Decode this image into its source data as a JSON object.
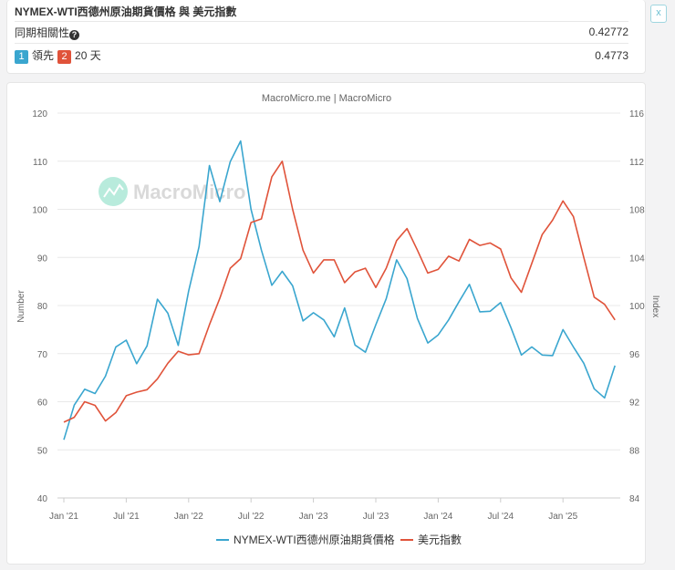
{
  "header": {
    "title": "NYMEX-WTI西德州原油期貨價格 與 美元指數",
    "close_label": "x"
  },
  "correlation": {
    "label": "同期相關性",
    "help_icon": "question-circle-icon",
    "value": "0.42772"
  },
  "lead": {
    "badge1": "1",
    "text1": "領先",
    "badge2": "2",
    "text2": "20 天",
    "value": "0.4773"
  },
  "colors": {
    "series1": "#3aa6cf",
    "series2": "#e0533a",
    "badge1": "#3aa6cf",
    "badge2": "#e0533a"
  },
  "chart_data": {
    "type": "line",
    "title": "MacroMicro.me | MacroMicro",
    "watermark": "MacroMicro",
    "ylabel_left": "Number",
    "ylabel_right": "Index",
    "ylim_left": [
      40,
      120
    ],
    "ylim_right": [
      84,
      116
    ],
    "yticks_left": [
      "40",
      "50",
      "60",
      "70",
      "80",
      "90",
      "100",
      "110",
      "120"
    ],
    "yticks_right": [
      "84",
      "88",
      "92",
      "96",
      "100",
      "104",
      "108",
      "112",
      "116"
    ],
    "xticks": [
      "Jan '21",
      "Jul '21",
      "Jan '22",
      "Jul '22",
      "Jan '23",
      "Jul '23",
      "Jan '24",
      "Jul '24",
      "Jan '25"
    ],
    "x_start": "2021-01",
    "x_end": "2025-06",
    "x_frequency": "monthly",
    "grid": true,
    "legend_position": "bottom",
    "series": [
      {
        "name": "NYMEX-WTI西德州原油期貨價格",
        "axis": "left",
        "values": [
          52.1,
          59.3,
          62.6,
          61.7,
          65.3,
          71.4,
          72.8,
          67.9,
          71.6,
          81.3,
          78.4,
          71.7,
          83.0,
          92.2,
          109.1,
          101.6,
          109.9,
          114.2,
          100.0,
          91.5,
          84.2,
          87.1,
          84.1,
          76.8,
          78.5,
          77.0,
          73.5,
          79.5,
          71.8,
          70.3,
          76.0,
          81.4,
          89.5,
          85.6,
          77.3,
          72.2,
          73.9,
          77.0,
          80.8,
          84.4,
          78.7,
          78.8,
          80.6,
          75.4,
          69.7,
          71.4,
          69.7,
          69.6,
          75.0,
          71.4,
          68.0,
          62.7,
          60.8,
          67.5
        ]
      },
      {
        "name": "美元指數",
        "axis": "right",
        "values": [
          90.3,
          90.7,
          92.0,
          91.7,
          90.4,
          91.1,
          92.5,
          92.8,
          93.0,
          93.9,
          95.2,
          96.2,
          95.9,
          96.0,
          98.4,
          100.6,
          103.1,
          103.9,
          106.9,
          107.2,
          110.7,
          112.0,
          108.0,
          104.6,
          102.7,
          103.8,
          103.8,
          101.9,
          102.8,
          103.1,
          101.5,
          103.1,
          105.4,
          106.4,
          104.6,
          102.7,
          103.0,
          104.1,
          103.7,
          105.5,
          105.0,
          105.2,
          104.7,
          102.3,
          101.1,
          103.5,
          105.9,
          107.1,
          108.7,
          107.4,
          104.0,
          100.7,
          100.1,
          98.8
        ]
      }
    ]
  }
}
